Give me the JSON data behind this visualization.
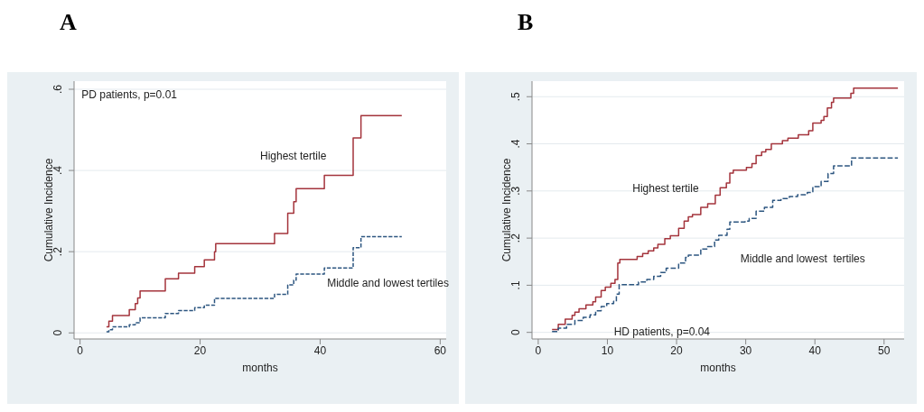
{
  "chart_data": [
    {
      "type": "step",
      "title": "A",
      "xlabel": "months",
      "ylabel": "Cumulative Incidence",
      "xlim": [
        -1,
        61
      ],
      "xticks": [
        0,
        20,
        40,
        60
      ],
      "ylim": [
        -0.015,
        0.62
      ],
      "yticks": [
        {
          "value": 0,
          "label": "0"
        },
        {
          "value": 0.2,
          "label": ".2"
        },
        {
          "value": 0.4,
          "label": ".4"
        },
        {
          "value": 0.6,
          "label": ".6"
        }
      ],
      "grid": "y",
      "annotations": [
        "PD patients, p=0.01"
      ],
      "series": [
        {
          "name": "Highest tertile",
          "color": "#a4343c",
          "line_style": "solid",
          "x": [
            4.4,
            4.8,
            5.4,
            8.2,
            9.2,
            9.6,
            10.0,
            14.2,
            16.4,
            19.1,
            20.7,
            22.4,
            22.6,
            32.4,
            34.6,
            35.6,
            36.0,
            40.7,
            45.5,
            46.8,
            53.6
          ],
          "values": [
            0.015,
            0.029,
            0.043,
            0.057,
            0.072,
            0.086,
            0.103,
            0.133,
            0.147,
            0.163,
            0.18,
            0.2,
            0.22,
            0.245,
            0.295,
            0.323,
            0.355,
            0.388,
            0.48,
            0.535,
            0.535
          ]
        },
        {
          "name": "Middle and lowest tertiles",
          "color": "#2d5680",
          "line_style": "dashed",
          "x": [
            4.4,
            4.8,
            5.4,
            8.2,
            9.2,
            10.0,
            14.2,
            16.4,
            19.1,
            20.7,
            22.4,
            32.4,
            34.6,
            35.6,
            36.0,
            40.7,
            45.5,
            46.8,
            53.6
          ],
          "values": [
            0.003,
            0.008,
            0.015,
            0.02,
            0.025,
            0.037,
            0.048,
            0.055,
            0.062,
            0.068,
            0.085,
            0.095,
            0.118,
            0.13,
            0.145,
            0.16,
            0.21,
            0.237,
            0.237
          ]
        }
      ]
    },
    {
      "type": "step",
      "title": "B",
      "xlabel": "months",
      "ylabel": "Cumulative Incidence",
      "xlim": [
        -0.9,
        52.9
      ],
      "xticks": [
        0,
        10,
        20,
        30,
        40,
        50
      ],
      "ylim": [
        -0.014,
        0.533
      ],
      "yticks": [
        {
          "value": 0,
          "label": "0"
        },
        {
          "value": 0.1,
          "label": ".1"
        },
        {
          "value": 0.2,
          "label": ".2"
        },
        {
          "value": 0.3,
          "label": ".3"
        },
        {
          "value": 0.4,
          "label": ".4"
        },
        {
          "value": 0.5,
          "label": ".5"
        }
      ],
      "grid": "y",
      "annotations": [
        "HD patients, p=0.04"
      ],
      "series": [
        {
          "name": "Highest tertile",
          "color": "#a4343c",
          "line_style": "solid",
          "x": [
            2.0,
            2.9,
            3.9,
            4.9,
            5.3,
            5.9,
            6.9,
            7.9,
            8.3,
            9.1,
            9.7,
            10.5,
            11.1,
            11.5,
            11.8,
            14.3,
            15.1,
            15.9,
            16.7,
            17.3,
            18.3,
            19.1,
            20.3,
            21.1,
            21.7,
            22.3,
            23.5,
            24.5,
            25.6,
            26.3,
            27.2,
            27.7,
            28.2,
            30.1,
            30.9,
            31.5,
            32.3,
            32.9,
            33.7,
            35.3,
            36.1,
            37.6,
            39.1,
            39.7,
            40.9,
            41.3,
            41.8,
            42.4,
            42.7,
            45.2,
            45.6,
            52.0
          ],
          "values": [
            0.006,
            0.017,
            0.028,
            0.036,
            0.043,
            0.05,
            0.058,
            0.065,
            0.075,
            0.089,
            0.096,
            0.104,
            0.112,
            0.147,
            0.155,
            0.161,
            0.167,
            0.173,
            0.179,
            0.187,
            0.199,
            0.205,
            0.221,
            0.236,
            0.245,
            0.25,
            0.265,
            0.273,
            0.291,
            0.307,
            0.317,
            0.338,
            0.344,
            0.35,
            0.358,
            0.375,
            0.383,
            0.388,
            0.4,
            0.407,
            0.412,
            0.419,
            0.428,
            0.444,
            0.45,
            0.458,
            0.476,
            0.488,
            0.497,
            0.507,
            0.518,
            0.518
          ]
        },
        {
          "name": "Middle and lowest  tertiles",
          "color": "#2d5680",
          "line_style": "dashed",
          "x": [
            2.0,
            2.9,
            4.1,
            5.3,
            6.5,
            7.5,
            8.3,
            9.1,
            9.9,
            10.9,
            11.3,
            11.7,
            14.5,
            15.7,
            16.7,
            17.7,
            18.5,
            20.3,
            21.3,
            21.7,
            23.5,
            24.5,
            25.5,
            26.1,
            27.3,
            27.7,
            29.9,
            30.5,
            31.5,
            32.7,
            33.9,
            35.1,
            36.3,
            37.5,
            38.9,
            39.7,
            40.9,
            41.9,
            42.7,
            45.3,
            52.0
          ],
          "values": [
            0.002,
            0.009,
            0.017,
            0.025,
            0.032,
            0.037,
            0.046,
            0.055,
            0.061,
            0.066,
            0.081,
            0.101,
            0.107,
            0.112,
            0.119,
            0.127,
            0.136,
            0.147,
            0.159,
            0.164,
            0.177,
            0.182,
            0.196,
            0.206,
            0.219,
            0.234,
            0.236,
            0.242,
            0.257,
            0.265,
            0.28,
            0.284,
            0.288,
            0.292,
            0.297,
            0.309,
            0.32,
            0.337,
            0.353,
            0.37,
            0.37
          ]
        }
      ]
    }
  ]
}
